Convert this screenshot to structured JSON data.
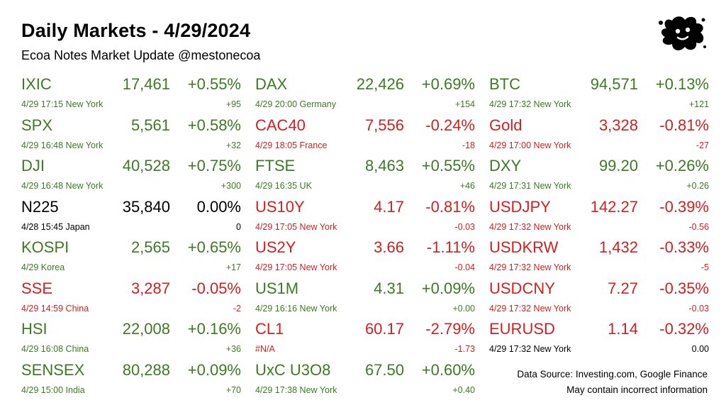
{
  "header": {
    "title": "Daily Markets - 4/29/2024",
    "subtitle": "Ecoa Notes Market Update @mestonecoa"
  },
  "logo": {
    "icon": "ink-splat-logo-icon"
  },
  "colors": {
    "up": "#3d7a24",
    "down": "#d21f1f",
    "flat": "#000000"
  },
  "columns": [
    {
      "items": [
        {
          "symbol": "IXIC",
          "price": "17,461",
          "pct": "+0.55%",
          "time": "4/29 17:15 New York",
          "change": "+95",
          "dir": "up"
        },
        {
          "symbol": "SPX",
          "price": "5,561",
          "pct": "+0.58%",
          "time": "4/29 16:48 New York",
          "change": "+32",
          "dir": "up"
        },
        {
          "symbol": "DJI",
          "price": "40,528",
          "pct": "+0.75%",
          "time": "4/29 16:48 New York",
          "change": "+300",
          "dir": "up"
        },
        {
          "symbol": "N225",
          "price": "35,840",
          "pct": "0.00%",
          "time": "4/28 15:45 Japan",
          "change": "0",
          "dir": "flat"
        },
        {
          "symbol": "KOSPI",
          "price": "2,565",
          "pct": "+0.65%",
          "time": "4/29  Korea",
          "change": "+17",
          "dir": "up"
        },
        {
          "symbol": "SSE",
          "price": "3,287",
          "pct": "-0.05%",
          "time": "4/29 14:59 China",
          "change": "-2",
          "dir": "down"
        },
        {
          "symbol": "HSI",
          "price": "22,008",
          "pct": "+0.16%",
          "time": "4/29 16:08 China",
          "change": "+36",
          "dir": "up"
        },
        {
          "symbol": "SENSEX",
          "price": "80,288",
          "pct": "+0.09%",
          "time": "4/29 15:00 India",
          "change": "+70",
          "dir": "up"
        }
      ]
    },
    {
      "items": [
        {
          "symbol": "DAX",
          "price": "22,426",
          "pct": "+0.69%",
          "time": "4/29 20:00 Germany",
          "change": "+154",
          "dir": "up"
        },
        {
          "symbol": "CAC40",
          "price": "7,556",
          "pct": "-0.24%",
          "time": "4/29 18:05 France",
          "change": "-18",
          "dir": "down"
        },
        {
          "symbol": "FTSE",
          "price": "8,463",
          "pct": "+0.55%",
          "time": "4/29 16:35 UK",
          "change": "+46",
          "dir": "up"
        },
        {
          "symbol": "US10Y",
          "price": "4.17",
          "pct": "-0.81%",
          "time": "4/29 17:05 New York",
          "change": "-0.03",
          "dir": "down"
        },
        {
          "symbol": "US2Y",
          "price": "3.66",
          "pct": "-1.11%",
          "time": "4/29 17:05 New York",
          "change": "-0.04",
          "dir": "down"
        },
        {
          "symbol": "US1M",
          "price": "4.31",
          "pct": "+0.09%",
          "time": "4/29 16:16 New York",
          "change": "+0.00",
          "dir": "up"
        },
        {
          "symbol": "CL1",
          "price": "60.17",
          "pct": "-2.79%",
          "time": "#N/A",
          "change": "-1.73",
          "dir": "down"
        },
        {
          "symbol": "UxC U3O8",
          "price": "67.50",
          "pct": "+0.60%",
          "time": "4/29 17:38 New York",
          "change": "+0.40",
          "dir": "up"
        }
      ]
    },
    {
      "items": [
        {
          "symbol": "BTC",
          "price": "94,571",
          "pct": "+0.13%",
          "time": "4/29 17:32 New York",
          "change": "+121",
          "dir": "up"
        },
        {
          "symbol": "Gold",
          "price": "3,328",
          "pct": "-0.81%",
          "time": "4/29 17:00 New York",
          "change": "-27",
          "dir": "down"
        },
        {
          "symbol": "DXY",
          "price": "99.20",
          "pct": "+0.26%",
          "time": "4/29 17:31 New York",
          "change": "+0.26",
          "dir": "up"
        },
        {
          "symbol": "USDJPY",
          "price": "142.27",
          "pct": "-0.39%",
          "time": "4/29 17:32 New York",
          "change": "-0.56",
          "dir": "down"
        },
        {
          "symbol": "USDKRW",
          "price": "1,432",
          "pct": "-0.33%",
          "time": "4/29 17:32 New York",
          "change": "-5",
          "dir": "down"
        },
        {
          "symbol": "USDCNY",
          "price": "7.27",
          "pct": "-0.35%",
          "time": "4/29 17:32 New York",
          "change": "-0.03",
          "dir": "down"
        },
        {
          "symbol": "EURUSD",
          "price": "1.14",
          "pct": "-0.32%",
          "time": "4/29 17:32 New York",
          "change": "0.00",
          "dir": "down",
          "sub_dir": "flat"
        }
      ]
    }
  ],
  "footer": {
    "source": "Data Source: Investing.com, Google Finance",
    "disclaimer": "May contain incorrect information"
  }
}
